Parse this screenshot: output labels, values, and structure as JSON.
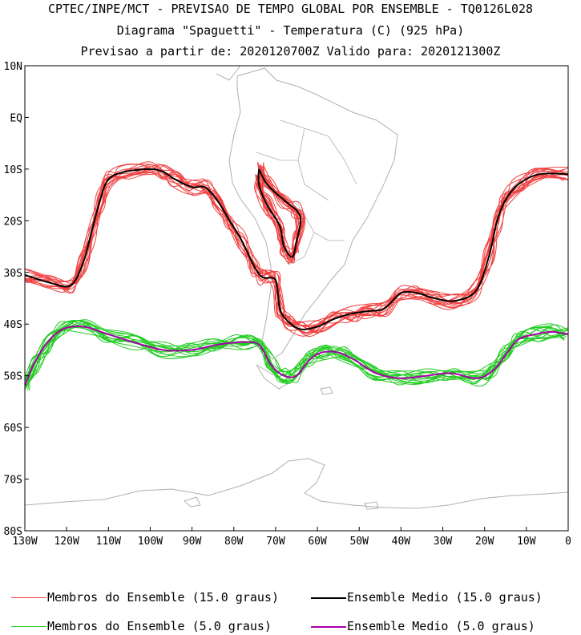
{
  "header": {
    "title1": "CPTEC/INPE/MCT - PREVISAO DE TEMPO GLOBAL POR ENSEMBLE - TQ0126L028",
    "title2": "Diagrama \"Spaguetti\" - Temperatura (C) (925 hPa)",
    "title3": "Previsao a partir de: 2020120700Z  Valido para: 2020121300Z"
  },
  "colors": {
    "members_15": "#f04040",
    "mean_15": "#000000",
    "members_5": "#22cc22",
    "mean_5": "#aa00aa",
    "land": "#b0b0b0"
  },
  "legend": {
    "members_15": "Membros do Ensemble (15.0 graus)",
    "mean_15": "Ensemble Medio (15.0 graus)",
    "members_5": "Membros do Ensemble (5.0 graus)",
    "mean_5": "Ensemble Medio (5.0 graus)"
  },
  "chart_data": {
    "type": "line",
    "xlim": [
      -130,
      0
    ],
    "ylim": [
      -80,
      10
    ],
    "xticks": [
      "130W",
      "120W",
      "110W",
      "100W",
      "90W",
      "80W",
      "70W",
      "60W",
      "50W",
      "40W",
      "30W",
      "20W",
      "10W",
      "0"
    ],
    "yticks": [
      "10N",
      "EQ",
      "10S",
      "20S",
      "30S",
      "40S",
      "50S",
      "60S",
      "70S",
      "80S"
    ],
    "series": [
      {
        "name": "Ensemble Medio (15.0 graus)",
        "ensemble_members": 15,
        "segments": [
          [
            [
              -130,
              -30.5
            ],
            [
              -124,
              -32
            ],
            [
              -119,
              -32.5
            ],
            [
              -116,
              -28
            ],
            [
              -114,
              -22
            ],
            [
              -112,
              -16
            ],
            [
              -110,
              -12
            ],
            [
              -106,
              -10.5
            ],
            [
              -100,
              -10
            ],
            [
              -97,
              -10.5
            ],
            [
              -94,
              -12
            ],
            [
              -90,
              -13.5
            ],
            [
              -87,
              -13.5
            ],
            [
              -84,
              -16
            ],
            [
              -81,
              -20
            ],
            [
              -78,
              -24
            ],
            [
              -75,
              -29
            ],
            [
              -73,
              -31
            ],
            [
              -70,
              -31.5
            ],
            [
              -69,
              -37
            ],
            [
              -67,
              -39.5
            ],
            [
              -64,
              -41
            ],
            [
              -60,
              -40.5
            ],
            [
              -56,
              -39
            ],
            [
              -52,
              -38
            ],
            [
              -48,
              -37.5
            ],
            [
              -44,
              -37
            ],
            [
              -40,
              -34
            ],
            [
              -36,
              -34
            ],
            [
              -32,
              -35
            ],
            [
              -27,
              -35.5
            ],
            [
              -22,
              -33.5
            ],
            [
              -19,
              -27
            ],
            [
              -17,
              -20
            ],
            [
              -15,
              -16
            ],
            [
              -12,
              -13
            ],
            [
              -7,
              -11
            ],
            [
              0,
              -11
            ]
          ],
          [
            [
              -74,
              -10
            ],
            [
              -72,
              -13
            ],
            [
              -68,
              -16
            ],
            [
              -65,
              -18
            ],
            [
              -64,
              -20
            ],
            [
              -65,
              -24
            ],
            [
              -66,
              -27
            ],
            [
              -68,
              -25
            ],
            [
              -69,
              -21
            ],
            [
              -72,
              -17
            ],
            [
              -74,
              -13
            ],
            [
              -74,
              -10
            ]
          ]
        ]
      },
      {
        "name": "Ensemble Medio (5.0 graus)",
        "ensemble_members": 15,
        "segments": [
          [
            [
              -130,
              -52
            ],
            [
              -128,
              -48
            ],
            [
              -125,
              -44
            ],
            [
              -121,
              -41
            ],
            [
              -116,
              -40.5
            ],
            [
              -110,
              -42
            ],
            [
              -104,
              -43.5
            ],
            [
              -97,
              -45
            ],
            [
              -90,
              -45
            ],
            [
              -84,
              -44
            ],
            [
              -78,
              -43.5
            ],
            [
              -74,
              -44
            ],
            [
              -71,
              -48
            ],
            [
              -68,
              -50
            ],
            [
              -65,
              -50
            ],
            [
              -62,
              -47
            ],
            [
              -59,
              -45.5
            ],
            [
              -55,
              -45.5
            ],
            [
              -51,
              -47
            ],
            [
              -46,
              -49.5
            ],
            [
              -40,
              -50.5
            ],
            [
              -34,
              -50
            ],
            [
              -28,
              -49.5
            ],
            [
              -22,
              -50.5
            ],
            [
              -18,
              -49
            ],
            [
              -15,
              -46
            ],
            [
              -12,
              -43
            ],
            [
              -8,
              -42
            ],
            [
              -4,
              -41.5
            ],
            [
              0,
              -42
            ]
          ]
        ]
      }
    ]
  }
}
